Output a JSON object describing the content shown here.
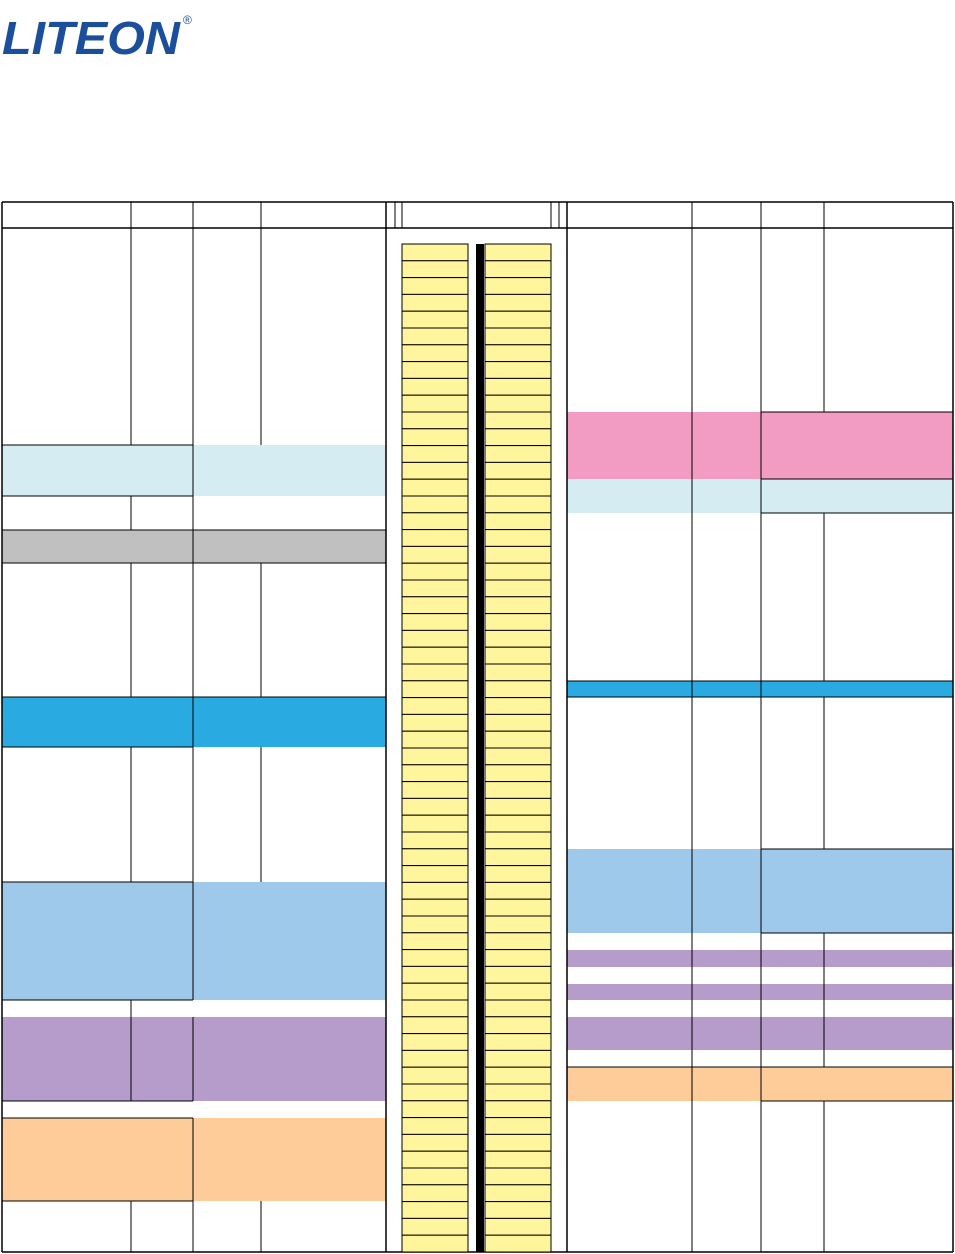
{
  "logo": {
    "text": "LITEON",
    "mark": "®"
  }
}
